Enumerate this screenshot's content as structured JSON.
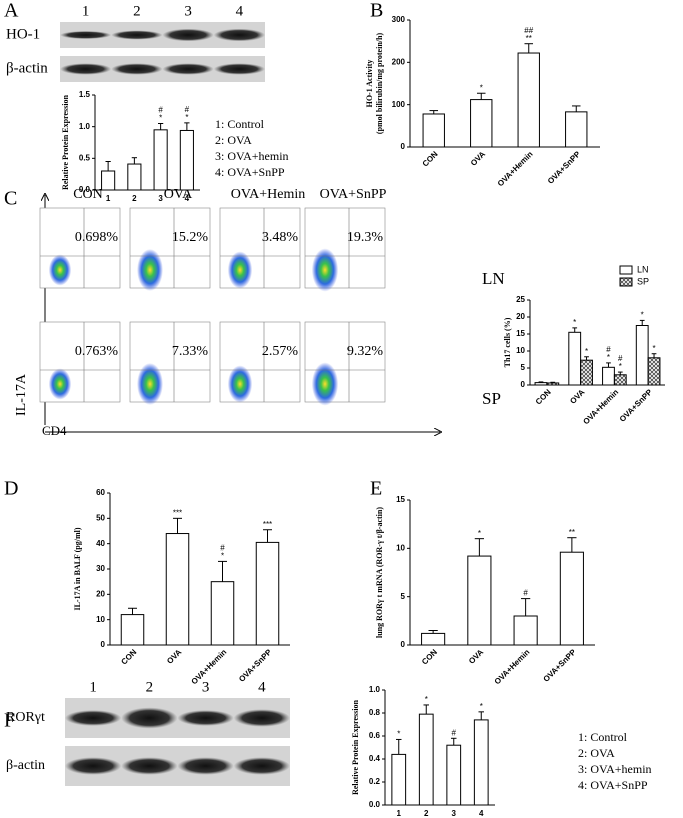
{
  "panels": [
    "A",
    "B",
    "C",
    "D",
    "E",
    "F"
  ],
  "blot_a": {
    "lanes": [
      "1",
      "2",
      "3",
      "4"
    ],
    "rows": [
      "HO-1",
      "β-actin"
    ]
  },
  "legend_a": [
    "1: Control",
    "2: OVA",
    "3: OVA+hemin",
    "4: OVA+SnPP"
  ],
  "flow": {
    "columns": [
      "CON",
      "OVA",
      "OVA+Hemin",
      "OVA+SnPP"
    ],
    "rows": [
      {
        "label": "LN",
        "values": [
          "0.698%",
          "15.2%",
          "3.48%",
          "19.3%"
        ]
      },
      {
        "label": "SP",
        "values": [
          "0.763%",
          "7.33%",
          "2.57%",
          "9.32%"
        ]
      }
    ],
    "y_label": "IL-17A",
    "x_label": "CD4"
  },
  "blot_f": {
    "lanes": [
      "1",
      "2",
      "3",
      "4"
    ],
    "rows": [
      "RORγt",
      "β-actin"
    ]
  },
  "legend_f": [
    "1: Control",
    "2: OVA",
    "3: OVA+hemin",
    "4: OVA+SnPP"
  ],
  "chart_data": [
    {
      "type": "bar",
      "ylabel": [
        "Relative Protein Expression"
      ],
      "categories": [
        "1",
        "2",
        "3",
        "4"
      ],
      "values": [
        0.3,
        0.41,
        0.95,
        0.94
      ],
      "errors": [
        0.15,
        0.1,
        0.1,
        0.12
      ],
      "annotations": [
        [],
        [],
        [
          "#",
          "*"
        ],
        [
          "#",
          "*"
        ]
      ],
      "color": "#ffffff",
      "ylim": [
        0,
        1.5
      ],
      "yticks": [
        {
          "value": 0,
          "label": "0.0"
        },
        0.5,
        {
          "value": 1,
          "label": "1.0"
        },
        1.5
      ]
    },
    {
      "type": "bar",
      "ylabel": [
        "HO-1 Activity",
        "(pmol bilirubin/mg protein/h)"
      ],
      "categories": [
        "CON",
        "OVA",
        "OVA+Hemin",
        "OVA+SnPP"
      ],
      "values": [
        78,
        112,
        222,
        83
      ],
      "errors": [
        8,
        15,
        22,
        14
      ],
      "annotations": [
        [],
        [
          "*"
        ],
        [
          "##",
          "**"
        ],
        []
      ],
      "color": "#ffffff",
      "ylim": [
        0,
        300
      ],
      "yticks": [
        0,
        100,
        200,
        300
      ]
    },
    {
      "type": "grouped-bar",
      "ylabel": [
        "Th17 cells (%)"
      ],
      "categories": [
        "CON",
        "OVA",
        "OVA+Hemin",
        "OVA+SnPP"
      ],
      "series": [
        {
          "name": "LN",
          "color": "#ffffff",
          "hatch": false,
          "values": [
            0.7,
            15.5,
            5.2,
            17.5
          ],
          "errors": [
            0.2,
            1.3,
            1.3,
            1.5
          ],
          "annotations": [
            [],
            [
              "*"
            ],
            [
              "#",
              "*"
            ],
            [
              "*"
            ]
          ]
        },
        {
          "name": "SP",
          "color": "#555555",
          "hatch": true,
          "values": [
            0.6,
            7.3,
            3.0,
            8.0
          ],
          "errors": [
            0.2,
            1.0,
            0.8,
            1.2
          ],
          "annotations": [
            [],
            [
              "*"
            ],
            [
              "#",
              "*"
            ],
            [
              "*"
            ]
          ]
        }
      ],
      "legend": "top-right",
      "ylim": [
        0,
        25
      ],
      "yticks": [
        0,
        5,
        10,
        15,
        20,
        25
      ]
    },
    {
      "type": "bar",
      "ylabel": [
        "IL-17A in BALF (pg/ml)"
      ],
      "categories": [
        "CON",
        "OVA",
        "OVA+Hemin",
        "OVA+SnPP"
      ],
      "values": [
        12,
        44,
        25,
        40.5
      ],
      "errors": [
        2.5,
        6,
        8,
        5
      ],
      "annotations": [
        [],
        [
          "***"
        ],
        [
          "#",
          "*"
        ],
        [
          "***"
        ]
      ],
      "color": "#ffffff",
      "ylim": [
        0,
        60
      ],
      "yticks": [
        0,
        10,
        20,
        30,
        40,
        50,
        60
      ]
    },
    {
      "type": "bar",
      "ylabel": [
        "lung RORγ t mRNA (ROR-γ t/β-actin)"
      ],
      "categories": [
        "CON",
        "OVA",
        "OVA+Hemin",
        "OVA+SnPP"
      ],
      "values": [
        1.2,
        9.2,
        3,
        9.6
      ],
      "errors": [
        0.3,
        1.8,
        1.8,
        1.5
      ],
      "annotations": [
        [],
        [
          "*"
        ],
        [
          "#"
        ],
        [
          "**"
        ]
      ],
      "color": "#ffffff",
      "ylim": [
        0,
        15
      ],
      "yticks": [
        0,
        5,
        10,
        15
      ]
    },
    {
      "type": "bar",
      "ylabel": [
        "Relative Protein Expression"
      ],
      "categories": [
        "1",
        "2",
        "3",
        "4"
      ],
      "values": [
        0.44,
        0.79,
        0.52,
        0.74
      ],
      "errors": [
        0.13,
        0.08,
        0.06,
        0.07
      ],
      "annotations": [
        [
          "*"
        ],
        [
          "*"
        ],
        [
          "#"
        ],
        [
          "*"
        ]
      ],
      "color": "#ffffff",
      "ylim": [
        0,
        1
      ],
      "yticks": [
        {
          "value": 0,
          "label": "0.0"
        },
        0.2,
        0.4,
        0.6,
        0.8,
        {
          "value": 1,
          "label": "1.0"
        }
      ]
    }
  ]
}
